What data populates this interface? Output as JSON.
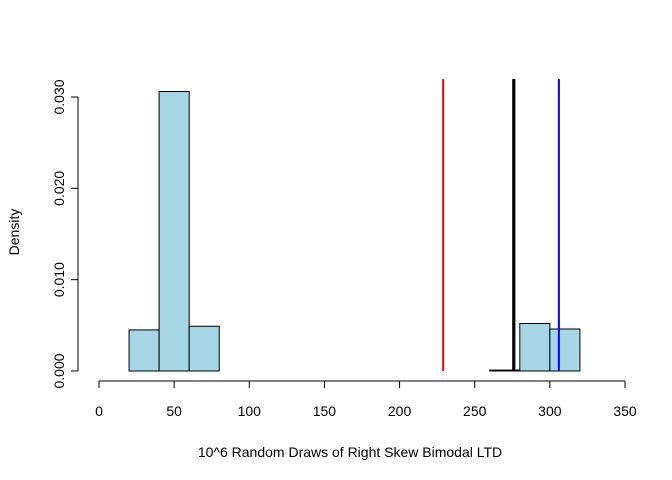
{
  "chart_data": {
    "type": "histogram",
    "xlabel": "10^6 Random Draws of Right Skew Bimodal LTD",
    "ylabel": "Density",
    "xlim": [
      0,
      350
    ],
    "ylim": [
      0,
      0.03
    ],
    "x_ticks": [
      "0",
      "50",
      "100",
      "150",
      "200",
      "250",
      "300",
      "350"
    ],
    "y_ticks": [
      "0.000",
      "0.010",
      "0.020",
      "0.030"
    ],
    "bar_color": "#a6d6e6",
    "bins": [
      {
        "from": 0,
        "to": 20,
        "density": 0.0
      },
      {
        "from": 20,
        "to": 40,
        "density": 0.0045
      },
      {
        "from": 40,
        "to": 60,
        "density": 0.0306
      },
      {
        "from": 60,
        "to": 80,
        "density": 0.0049
      },
      {
        "from": 80,
        "to": 100,
        "density": 0.0
      },
      {
        "from": 100,
        "to": 120,
        "density": 0.0
      },
      {
        "from": 120,
        "to": 140,
        "density": 0.0
      },
      {
        "from": 140,
        "to": 160,
        "density": 0.0
      },
      {
        "from": 160,
        "to": 180,
        "density": 0.0
      },
      {
        "from": 180,
        "to": 200,
        "density": 0.0
      },
      {
        "from": 200,
        "to": 220,
        "density": 0.0
      },
      {
        "from": 220,
        "to": 240,
        "density": 0.0
      },
      {
        "from": 240,
        "to": 260,
        "density": 0.0
      },
      {
        "from": 260,
        "to": 280,
        "density": 0.0001
      },
      {
        "from": 280,
        "to": 300,
        "density": 0.0052
      },
      {
        "from": 300,
        "to": 320,
        "density": 0.0046
      },
      {
        "from": 320,
        "to": 340,
        "density": 0.0
      }
    ],
    "vertical_lines": [
      {
        "x": 229,
        "color": "#ff0000",
        "width": "normal"
      },
      {
        "x": 276,
        "color": "#000000",
        "width": "thick"
      },
      {
        "x": 306,
        "color": "#0000ff",
        "width": "normal"
      }
    ]
  }
}
